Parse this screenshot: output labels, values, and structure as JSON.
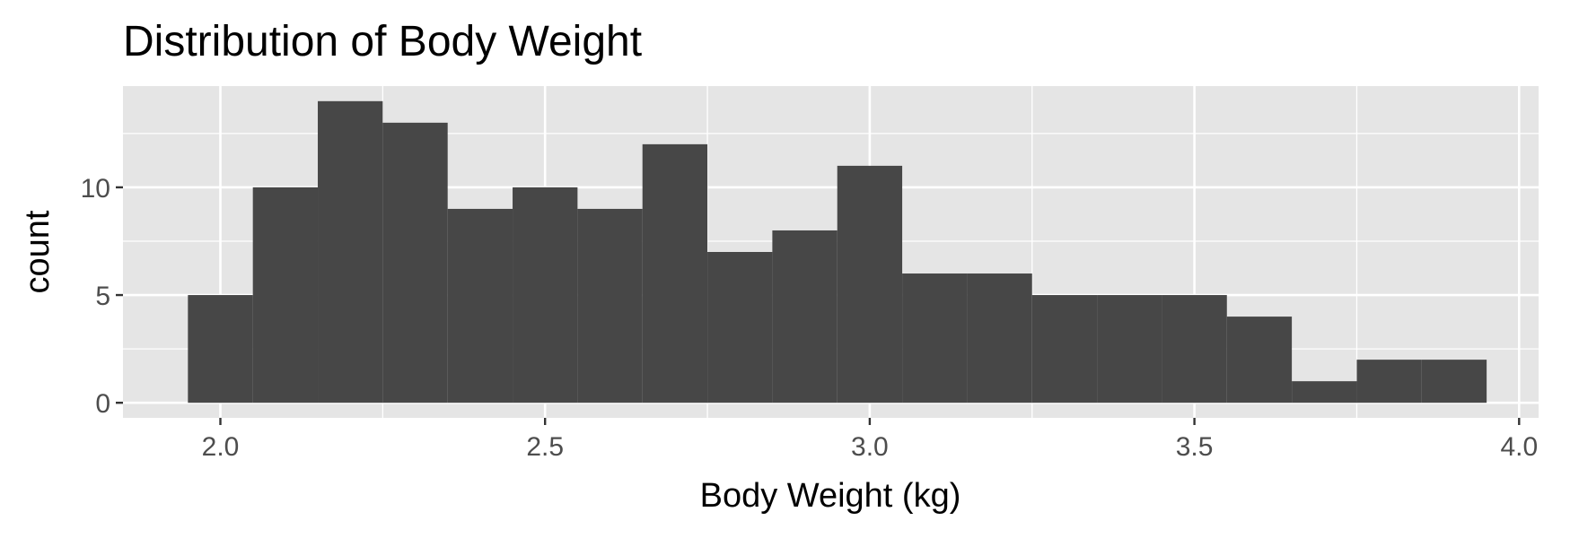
{
  "chart_data": {
    "type": "bar",
    "title": "Distribution of Body Weight",
    "xlabel": "Body Weight (kg)",
    "ylabel": "count",
    "bin_width": 0.1,
    "bins": [
      {
        "start": 1.95,
        "end": 2.05,
        "count": 5
      },
      {
        "start": 2.05,
        "end": 2.15,
        "count": 10
      },
      {
        "start": 2.15,
        "end": 2.25,
        "count": 14
      },
      {
        "start": 2.25,
        "end": 2.35,
        "count": 13
      },
      {
        "start": 2.35,
        "end": 2.45,
        "count": 9
      },
      {
        "start": 2.45,
        "end": 2.55,
        "count": 10
      },
      {
        "start": 2.55,
        "end": 2.65,
        "count": 9
      },
      {
        "start": 2.65,
        "end": 2.75,
        "count": 12
      },
      {
        "start": 2.75,
        "end": 2.85,
        "count": 7
      },
      {
        "start": 2.85,
        "end": 2.95,
        "count": 8
      },
      {
        "start": 2.95,
        "end": 3.05,
        "count": 11
      },
      {
        "start": 3.05,
        "end": 3.15,
        "count": 6
      },
      {
        "start": 3.15,
        "end": 3.25,
        "count": 6
      },
      {
        "start": 3.25,
        "end": 3.35,
        "count": 5
      },
      {
        "start": 3.35,
        "end": 3.45,
        "count": 5
      },
      {
        "start": 3.45,
        "end": 3.55,
        "count": 5
      },
      {
        "start": 3.55,
        "end": 3.65,
        "count": 4
      },
      {
        "start": 3.65,
        "end": 3.75,
        "count": 1
      },
      {
        "start": 3.75,
        "end": 3.85,
        "count": 2
      },
      {
        "start": 3.85,
        "end": 3.95,
        "count": 2
      }
    ],
    "xlim": [
      1.85,
      4.03
    ],
    "ylim": [
      -0.7,
      14.7
    ],
    "x_ticks": [
      {
        "value": 2.0,
        "label": "2.0"
      },
      {
        "value": 2.5,
        "label": "2.5"
      },
      {
        "value": 3.0,
        "label": "3.0"
      },
      {
        "value": 3.5,
        "label": "3.5"
      },
      {
        "value": 4.0,
        "label": "4.0"
      }
    ],
    "y_ticks": [
      {
        "value": 0,
        "label": "0"
      },
      {
        "value": 5,
        "label": "5"
      },
      {
        "value": 10,
        "label": "10"
      }
    ],
    "grid": true,
    "legend": "none",
    "colors": {
      "bar_fill": "#474747",
      "panel_background": "#e5e5e5",
      "grid_line": "#ffffff",
      "tick_mark": "#333333"
    }
  }
}
